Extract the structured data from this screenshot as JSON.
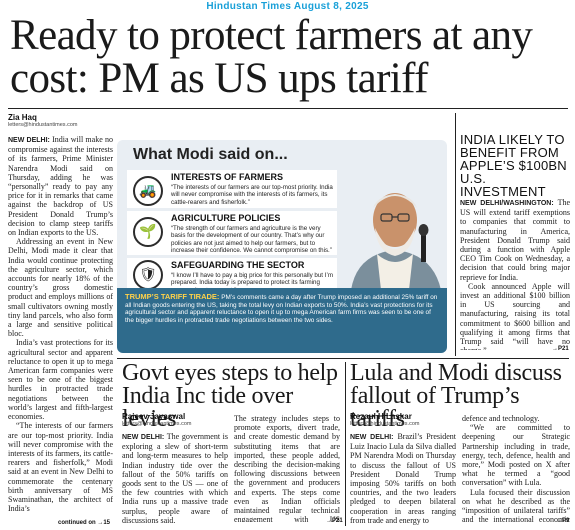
{
  "masthead": "Hindustan Times August 8, 2025",
  "headline": "Ready to protect farmers at any cost: PM as US ups tariff",
  "lead": {
    "author": "Zia Haq",
    "email": "letters@hindustantimes.com",
    "dateline": "NEW DELHI:",
    "p1": "India will make no compromise against the interests of its farmers, Prime Minister Narendra Modi said on Thursday, adding he was “personally” ready to pay any price for it in remarks that came against the backdrop of US President Donald Trump’s decision to clamp steep tariffs on Indian exports to the US.",
    "p2": "Addressing an event in New Delhi, Modi made it clear that India would continue protecting the agriculture sector, which accounts for nearly 18% of the country’s gross domestic product and employs millions of small cultivators owning mostly tiny land parcels, who also form a large and sensitive political bloc.",
    "p3": "India’s vast protections for its agricultural sector and apparent reluctance to open it up to mega American farm companies were seen to be one of the biggest hurdles in protracted trade negotiations between the world’s largest and fifth-largest economies.",
    "p4": "“The interests of our farmers are our top-most priority. India will never compromise with the interests of its farmers, its cattle-rearers and fisherfolk,” Modi said at an event in New Delhi to commemorate the centenary birth anniversary of MS Swaminathan, the architect of India’s",
    "continued": "continued on →15"
  },
  "infobox": {
    "title": "What Modi said on...",
    "sections": [
      {
        "icon": "tractor-icon",
        "glyph": "🚜",
        "head": "INTERESTS OF FARMERS",
        "text": "“The interests of our farmers are our top-most priority. India will never compromise with the interests of its farmers, its cattle-rearers and fisherfolk.”"
      },
      {
        "icon": "plant-icon",
        "glyph": "🌱",
        "head": "AGRICULTURE POLICIES",
        "text": "“The strength of our farmers and agriculture is the very basis for the development of our country. That’s why our policies are not just aimed to help our farmers, but to increase their confidence. We cannot compromise on this.”"
      },
      {
        "icon": "shield-icon",
        "glyph": "🛡",
        "head": "SAFEGUARDING THE SECTOR",
        "text": "“I know I’ll have to pay a big price for this personally but I’m prepared. India today is prepared to protect its farming community at any cost.”"
      }
    ],
    "tirade_label": "TRUMP’S TARIFF TIRADE:",
    "tirade_text": "PM’s comments came a day after Trump imposed an additional 25% tariff on all Indian goods entering the US, taking the total levy on Indian exports to 50%. India’s vast protections for its agricultural sector and apparent reluctance to open it up to mega American farm firms was seen to be one of the bigger hurdles in protracted trade negotiations between the two sides."
  },
  "side": {
    "headline": "INDIA LIKELY TO BENEFIT FROM APPLE’S $100BN U.S. INVESTMENT",
    "dateline": "NEW DELHI/WASHINGTON:",
    "p1": "The US will extend tariff exemptions to companies that commit to manufacturing in America, President Donald Trump said during a function with Apple CEO Tim Cook on Wednesday, a decision that could bring major reprieve for India.",
    "p2": "Cook announced Apple will invest an additional $100 billion in US sourcing and manufacturing, raising its total commitment to $600 billion and qualifying it among firms that Trump said “will have no charge.”",
    "continued": "→P21"
  },
  "story2": {
    "headline": "Govt eyes steps to help India Inc tide over levies",
    "author": "Rajeev Jayaswal",
    "email": "letters@hindustantimes.com",
    "dateline": "NEW DELHI:",
    "col1": "The government is exploring a slew of short-term and long-term measures to help Indian industry tide over the fallout of the 50% tariffs on goods sent to the US — one of the few countries with which India runs up a massive trade surplus, people aware of discussions said.",
    "col2": "The strategy includes steps to promote exports, divert trade, and create domestic demand by substituting items that are imported, these people added, describing the decision-making following discussions between the government and producers and experts. The steps come even as Indian officials maintained regular technical engagement with US counterparts.",
    "continued": "→P21"
  },
  "story3": {
    "headline": "Lula and Modi discuss fallout of Trump’s tariffs",
    "author": "Rezaul H Laskar",
    "email": "letters@hindustantimes.com",
    "dateline": "NEW DELHI:",
    "col1": "Brazil’s President Luiz Inacio Lula da Silva dialled PM Narendra Modi on Thursday to discuss the fallout of US President Donald Trump imposing 50% tariffs on both countries, and the two leaders pledged to deepen bilateral cooperation in areas ranging from trade and energy to",
    "col2a": "defence and technology.",
    "col2b": "“We are committed to deepening our Strategic Partnership including in trade, energy, tech, defence, health and more,” Modi posted on X after what he termed a “good conversation” with Lula.",
    "col2c": "Lula focused their discussion on what he described as the “imposition of unilateral tariffs” and the international economic scenario.",
    "continued": "→P9"
  }
}
